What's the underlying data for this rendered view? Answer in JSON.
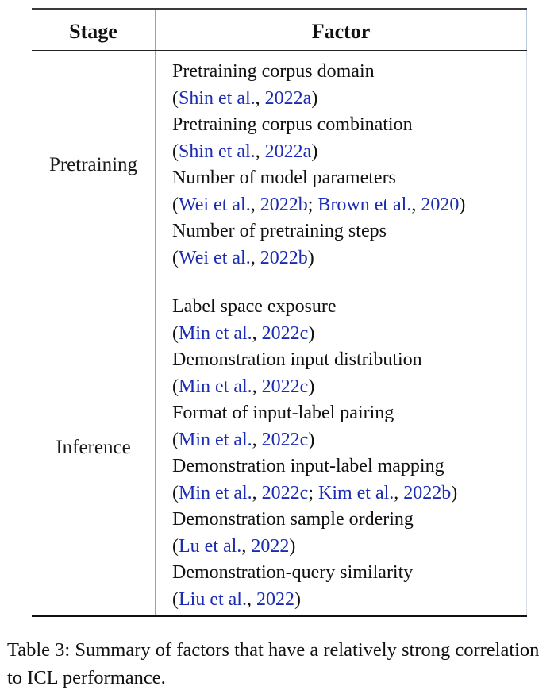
{
  "table": {
    "headers": {
      "stage": "Stage",
      "factor": "Factor"
    },
    "groups": [
      {
        "stage": "Pretraining",
        "factors": [
          {
            "name": "Pretraining corpus domain",
            "cite_open": "(",
            "cite_close": ")",
            "refs": [
              {
                "authors": "Shin et al.",
                "comma": ", ",
                "year": "2022a"
              }
            ]
          },
          {
            "name": "Pretraining corpus combination",
            "cite_open": "(",
            "cite_close": ")",
            "refs": [
              {
                "authors": "Shin et al.",
                "comma": ", ",
                "year": "2022a"
              }
            ]
          },
          {
            "name": "Number of model parameters",
            "cite_open": "(",
            "cite_close": ")",
            "refs": [
              {
                "authors": "Wei et al.",
                "comma": ", ",
                "year": "2022b",
                "sep": "; "
              },
              {
                "authors": "Brown et al.",
                "comma": ", ",
                "year": "2020"
              }
            ]
          },
          {
            "name": "Number of pretraining steps",
            "cite_open": "(",
            "cite_close": ")",
            "refs": [
              {
                "authors": "Wei et al.",
                "comma": ", ",
                "year": "2022b"
              }
            ]
          }
        ]
      },
      {
        "stage": "Inference",
        "factors": [
          {
            "name": "Label space exposure",
            "cite_open": "(",
            "cite_close": ")",
            "refs": [
              {
                "authors": "Min et al.",
                "comma": ", ",
                "year": "2022c"
              }
            ]
          },
          {
            "name": "Demonstration input distribution",
            "cite_open": "(",
            "cite_close": ")",
            "refs": [
              {
                "authors": "Min et al.",
                "comma": ", ",
                "year": "2022c"
              }
            ]
          },
          {
            "name": "Format of input-label pairing",
            "cite_open": "(",
            "cite_close": ")",
            "refs": [
              {
                "authors": "Min et al.",
                "comma": ", ",
                "year": "2022c"
              }
            ]
          },
          {
            "name": "Demonstration input-label mapping",
            "cite_open": "(",
            "cite_close": ")",
            "refs": [
              {
                "authors": "Min et al.",
                "comma": ", ",
                "year": "2022c",
                "sep": "; "
              },
              {
                "authors": "Kim et al.",
                "comma": ", ",
                "year": "2022b"
              }
            ]
          },
          {
            "name": "Demonstration sample ordering",
            "cite_open": "(",
            "cite_close": ")",
            "refs": [
              {
                "authors": "Lu et al.",
                "comma": ", ",
                "year": "2022"
              }
            ]
          },
          {
            "name": "Demonstration-query similarity",
            "cite_open": "(",
            "cite_close": ")",
            "refs": [
              {
                "authors": "Liu et al.",
                "comma": ", ",
                "year": "2022"
              }
            ]
          }
        ]
      }
    ]
  },
  "caption": "Table 3: Summary of factors that have a relatively strong correlation to ICL performance.",
  "colors": {
    "citation_link": "#1a2cb4",
    "text": "#111111"
  }
}
